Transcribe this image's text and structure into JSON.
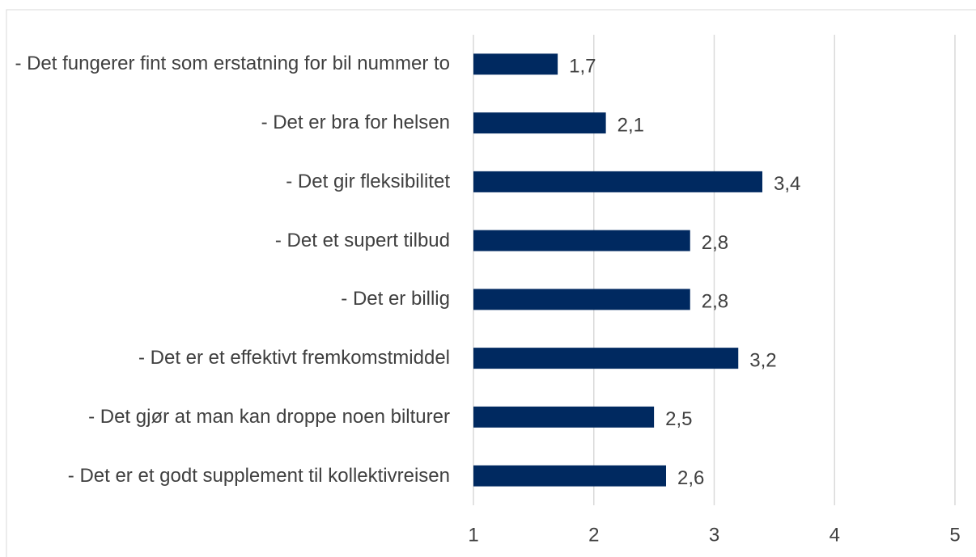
{
  "chart_data": {
    "type": "bar",
    "orientation": "horizontal",
    "categories": [
      "- Det fungerer fint som erstatning for bil nummer to",
      "- Det er bra for helsen",
      "- Det gir fleksibilitet",
      "- Det et supert tilbud",
      "- Det er billig",
      "- Det er et effektivt fremkomstmiddel",
      "- Det gjør at man kan droppe noen bilturer",
      "- Det er et godt supplement til kollektivreisen"
    ],
    "values": [
      1.7,
      2.1,
      3.4,
      2.8,
      2.8,
      3.2,
      2.5,
      2.6
    ],
    "value_labels": [
      "1,7",
      "2,1",
      "3,4",
      "2,8",
      "2,8",
      "3,2",
      "2,5",
      "2,6"
    ],
    "color": "#002960",
    "xlim": [
      1,
      5
    ],
    "xticks": [
      1,
      2,
      3,
      4,
      5
    ],
    "grid": true
  }
}
